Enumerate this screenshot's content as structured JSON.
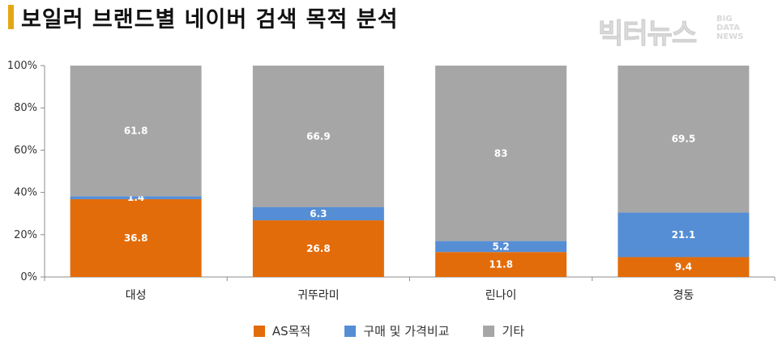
{
  "title": "보일러 브랜드별 네이버 검색 목적 분석",
  "logo": {
    "main": "빅터뉴스",
    "sub": [
      "BIG",
      "DATA",
      "NEWS"
    ]
  },
  "colors": {
    "as": "#e36c0a",
    "buy": "#558ed5",
    "other": "#a6a6a6",
    "accent": "#e3a714"
  },
  "chart_data": {
    "type": "bar",
    "stacked": true,
    "categories": [
      "대성",
      "귀뚜라미",
      "린나이",
      "경동"
    ],
    "series": [
      {
        "name": "AS목적",
        "values": [
          36.8,
          26.8,
          11.8,
          9.4
        ],
        "labels": [
          "36.8",
          "26.8",
          "11.8",
          "9.4"
        ]
      },
      {
        "name": "구매 및 가격비교",
        "values": [
          1.4,
          6.3,
          5.2,
          21.1
        ],
        "labels": [
          "1.4",
          "6.3",
          "5.2",
          "21.1"
        ]
      },
      {
        "name": "기타",
        "values": [
          61.8,
          66.9,
          83,
          69.5
        ],
        "labels": [
          "61.8",
          "66.9",
          "83",
          "69.5"
        ]
      }
    ],
    "ylim": [
      0,
      100
    ],
    "yticks": [
      "0%",
      "20%",
      "40%",
      "60%",
      "80%",
      "100%"
    ],
    "legend_position": "bottom",
    "grid": false
  }
}
